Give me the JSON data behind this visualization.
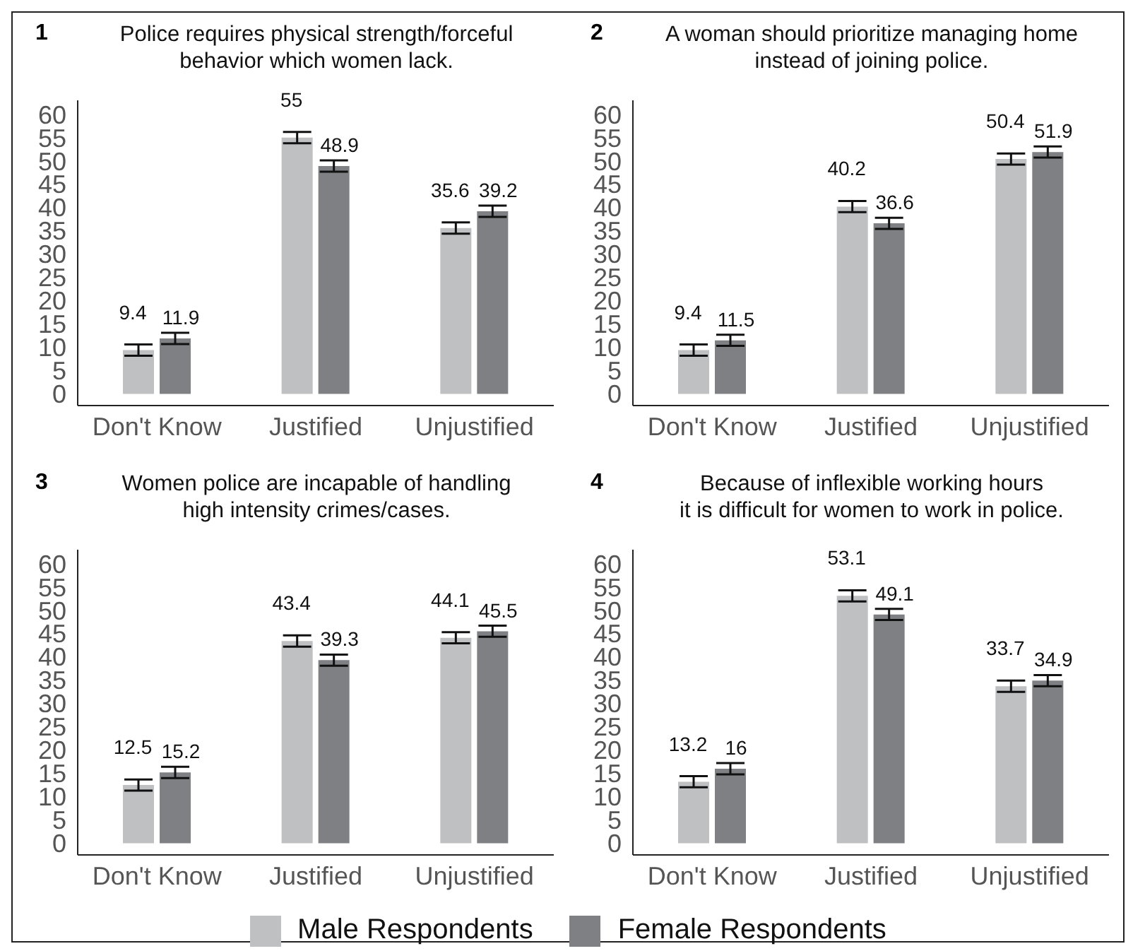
{
  "chart_data": [
    {
      "type": "bar",
      "title": "Police requires physical strength/forceful\nbehavior which women lack.",
      "annotations": [
        "1"
      ],
      "categories": [
        "Don't Know",
        "Justified",
        "Unjustified"
      ],
      "series": [
        {
          "name": "Male Respondents",
          "color": "#bfc0c2",
          "values": [
            9.4,
            55,
            35.6
          ],
          "errors": [
            1.2,
            1.2,
            1.2
          ]
        },
        {
          "name": "Female Respondents",
          "color": "#7f8084",
          "values": [
            11.9,
            48.9,
            39.2
          ],
          "errors": [
            1.2,
            1.2,
            1.2
          ]
        }
      ],
      "ylim": [
        -2.5,
        63
      ],
      "yticks": [
        0,
        5,
        10,
        15,
        20,
        25,
        30,
        35,
        40,
        45,
        50,
        55,
        60
      ],
      "data_labels": true,
      "grid": false,
      "legend": "bottom"
    },
    {
      "type": "bar",
      "title": "A woman should prioritize managing home\ninstead of joining police.",
      "annotations": [
        "2"
      ],
      "categories": [
        "Don't Know",
        "Justified",
        "Unjustified"
      ],
      "series": [
        {
          "color": "#bfc0c2",
          "values": [
            9.4,
            40.2,
            50.4
          ],
          "errors": [
            1.2,
            1.2,
            1.2
          ]
        },
        {
          "color": "#7f8084",
          "values": [
            11.5,
            36.6,
            51.9
          ],
          "errors": [
            1.2,
            1.2,
            1.2
          ]
        }
      ],
      "ylim": [
        -2.5,
        63
      ],
      "yticks": [
        0,
        5,
        10,
        15,
        20,
        25,
        30,
        35,
        40,
        45,
        50,
        55,
        60
      ],
      "data_labels": true,
      "grid": false
    },
    {
      "type": "bar",
      "title": "Women police are incapable of handling\nhigh intensity crimes/cases.",
      "annotations": [
        "3"
      ],
      "categories": [
        "Don't Know",
        "Justified",
        "Unjustified"
      ],
      "series": [
        {
          "color": "#bfc0c2",
          "values": [
            12.5,
            43.4,
            44.1
          ],
          "errors": [
            1.2,
            1.2,
            1.2
          ]
        },
        {
          "color": "#7f8084",
          "values": [
            15.2,
            39.3,
            45.5
          ],
          "errors": [
            1.2,
            1.2,
            1.2
          ]
        }
      ],
      "ylim": [
        -2.5,
        63
      ],
      "yticks": [
        0,
        5,
        10,
        15,
        20,
        25,
        30,
        35,
        40,
        45,
        50,
        55,
        60
      ],
      "data_labels": true,
      "grid": false
    },
    {
      "type": "bar",
      "title": "Because of inflexible working hours\nit is difficult for women to work in police.",
      "annotations": [
        "4"
      ],
      "categories": [
        "Don't Know",
        "Justified",
        "Unjustified"
      ],
      "series": [
        {
          "color": "#bfc0c2",
          "values": [
            13.2,
            53.1,
            33.7
          ],
          "errors": [
            1.2,
            1.2,
            1.2
          ]
        },
        {
          "color": "#7f8084",
          "values": [
            16,
            49.1,
            34.9
          ],
          "errors": [
            1.2,
            1.2,
            1.2
          ]
        }
      ],
      "ylim": [
        -2.5,
        63
      ],
      "yticks": [
        0,
        5,
        10,
        15,
        20,
        25,
        30,
        35,
        40,
        45,
        50,
        55,
        60
      ],
      "data_labels": true,
      "grid": false
    }
  ]
}
